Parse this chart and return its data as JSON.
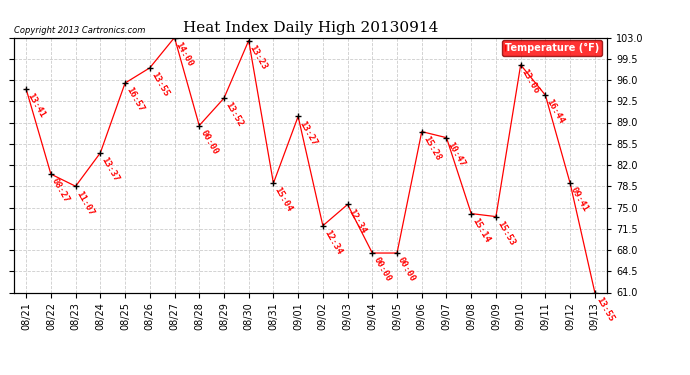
{
  "title": "Heat Index Daily High 20130914",
  "copyright": "Copyright 2013 Cartronics.com",
  "legend_label": "Temperature (°F)",
  "x_labels": [
    "08/21",
    "08/22",
    "08/23",
    "08/24",
    "08/25",
    "08/26",
    "08/27",
    "08/28",
    "08/29",
    "08/30",
    "08/31",
    "09/01",
    "09/02",
    "09/03",
    "09/04",
    "09/05",
    "09/06",
    "09/07",
    "09/08",
    "09/09",
    "09/10",
    "09/11",
    "09/12",
    "09/13"
  ],
  "y_values": [
    94.5,
    80.5,
    78.5,
    84.0,
    95.5,
    98.0,
    103.0,
    88.5,
    93.0,
    102.5,
    79.0,
    90.0,
    72.0,
    75.5,
    67.5,
    67.5,
    87.5,
    86.5,
    74.0,
    73.5,
    98.5,
    93.5,
    79.0,
    61.0
  ],
  "point_labels": [
    "13:41",
    "08:27",
    "11:07",
    "13:37",
    "16:57",
    "13:55",
    "14:00",
    "00:00",
    "13:52",
    "13:23",
    "15:04",
    "13:27",
    "12:34",
    "12:34",
    "00:00",
    "00:00",
    "15:28",
    "10:47",
    "15:14",
    "15:53",
    "13:06",
    "16:44",
    "09:41",
    "13:55"
  ],
  "ylim": [
    61.0,
    103.0
  ],
  "yticks": [
    61.0,
    64.5,
    68.0,
    71.5,
    75.0,
    78.5,
    82.0,
    85.5,
    89.0,
    92.5,
    96.0,
    99.5,
    103.0
  ],
  "line_color": "red",
  "point_color": "black",
  "label_color": "red",
  "bg_color": "white",
  "grid_color": "#cccccc",
  "title_fontsize": 11,
  "label_fontsize": 6.5,
  "tick_fontsize": 7
}
